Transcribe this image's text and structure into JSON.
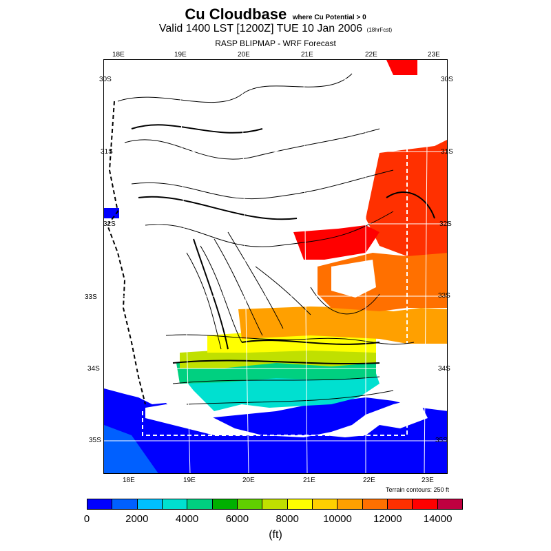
{
  "header": {
    "title": "Cu Cloudbase",
    "title_note": "where Cu Potential > 0",
    "valid": "Valid 1400 LST [1200Z] TUE 10 Jan 2006",
    "forecast": "(18hrFcst)",
    "model": "RASP BLIPMAP - WRF Forecast"
  },
  "map": {
    "lon_top": [
      "18E",
      "19E",
      "20E",
      "21E",
      "22E",
      "23E"
    ],
    "lon_bottom": [
      "18E",
      "19E",
      "20E",
      "21E",
      "22E",
      "23E"
    ],
    "lat_left": [
      "30S",
      "31S",
      "32S",
      "33S",
      "34S",
      "35S"
    ],
    "lat_right": [
      "30S",
      "31S",
      "32S",
      "33S",
      "34S",
      "35S"
    ],
    "terrain_note": "Terrain contours: 250 ft"
  },
  "colorbar": {
    "colors": [
      "#0000ff",
      "#0060ff",
      "#00c0ff",
      "#00e0d0",
      "#00d080",
      "#00b000",
      "#60d000",
      "#c0e000",
      "#ffff00",
      "#ffd000",
      "#ffa000",
      "#ff7000",
      "#ff3000",
      "#ff0000",
      "#c00040"
    ],
    "labels": [
      "0",
      "2000",
      "4000",
      "6000",
      "8000",
      "10000",
      "12000",
      "14000"
    ],
    "unit": "(ft)"
  }
}
